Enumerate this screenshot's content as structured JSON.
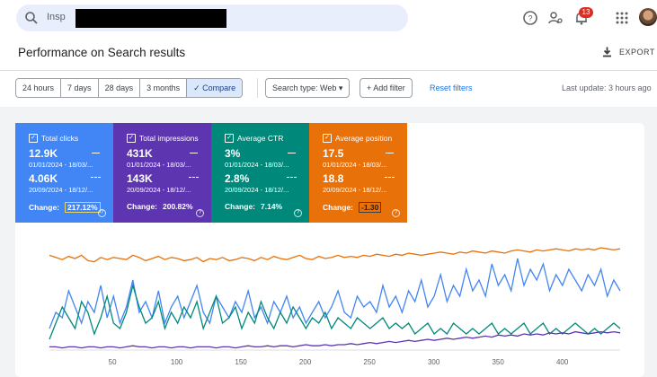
{
  "search": {
    "placeholder": "Insp"
  },
  "page": {
    "title": "Performance on Search results",
    "export_label": "EXPORT"
  },
  "notifications": {
    "count": "13"
  },
  "ranges": [
    "24 hours",
    "7 days",
    "28 days",
    "3 months",
    "Compare"
  ],
  "filters": {
    "search_type": "Search type: Web",
    "add_filter": "Add filter",
    "reset": "Reset filters",
    "last_update": "Last update: 3 hours ago"
  },
  "metrics": [
    {
      "label": "Total clicks",
      "value1": "12.9K",
      "date1": "01/01/2024 - 18/03/...",
      "value2": "4.06K",
      "date2": "20/09/2024 - 18/12/...",
      "change_label": "Change:",
      "change": "217.12%",
      "color": "#4285f4"
    },
    {
      "label": "Total impressions",
      "value1": "431K",
      "date1": "01/01/2024 - 18/03/...",
      "value2": "143K",
      "date2": "20/09/2024 - 18/12/...",
      "change_label": "Change:",
      "change": "200.82%",
      "color": "#5e35b1"
    },
    {
      "label": "Average CTR",
      "value1": "3%",
      "date1": "01/01/2024 - 18/03/...",
      "value2": "2.8%",
      "date2": "20/09/2024 - 18/12/...",
      "change_label": "Change:",
      "change": "7.14%",
      "color": "#00897b"
    },
    {
      "label": "Average position",
      "value1": "17.5",
      "date1": "01/01/2024 - 18/03/...",
      "value2": "18.8",
      "date2": "20/09/2024 - 18/12/...",
      "change_label": "Change:",
      "change": "-1.30",
      "color": "#e8710a"
    }
  ],
  "chart_data": {
    "type": "line",
    "x_ticks": [
      50,
      100,
      150,
      200,
      250,
      300,
      350,
      400
    ],
    "xlim": [
      1,
      445
    ],
    "ylim": [
      0,
      100
    ],
    "series": [
      {
        "color": "#e8710a",
        "values": [
          88,
          86,
          84,
          87,
          85,
          88,
          83,
          82,
          86,
          84,
          86,
          85,
          84,
          88,
          86,
          83,
          85,
          87,
          84,
          86,
          85,
          83,
          84,
          86,
          82,
          85,
          84,
          86,
          83,
          84,
          86,
          85,
          83,
          86,
          84,
          87,
          85,
          84,
          86,
          88,
          85,
          84,
          87,
          85,
          86,
          88,
          86,
          87,
          86,
          88,
          87,
          89,
          88,
          87,
          89,
          88,
          90,
          89,
          88,
          89,
          90,
          91,
          90,
          89,
          91,
          90,
          92,
          91,
          90,
          92,
          91,
          90,
          92,
          93,
          92,
          91,
          93,
          92,
          93,
          94,
          93,
          92,
          94,
          93,
          94,
          93,
          95,
          94,
          93,
          94
        ]
      },
      {
        "color": "#4285f4",
        "values": [
          20,
          35,
          30,
          55,
          40,
          25,
          45,
          35,
          60,
          30,
          50,
          25,
          40,
          65,
          35,
          45,
          30,
          55,
          25,
          40,
          50,
          30,
          45,
          60,
          35,
          25,
          50,
          40,
          30,
          45,
          35,
          55,
          30,
          40,
          25,
          45,
          35,
          50,
          30,
          40,
          25,
          35,
          45,
          30,
          40,
          55,
          35,
          30,
          50,
          40,
          45,
          35,
          60,
          40,
          50,
          35,
          55,
          45,
          65,
          40,
          50,
          70,
          45,
          60,
          50,
          75,
          55,
          65,
          50,
          80,
          60,
          70,
          55,
          85,
          60,
          75,
          65,
          80,
          55,
          70,
          60,
          75,
          65,
          55,
          70,
          60,
          75,
          50,
          65,
          55
        ]
      },
      {
        "color": "#00897b",
        "values": [
          10,
          25,
          40,
          30,
          20,
          45,
          35,
          15,
          30,
          50,
          25,
          20,
          35,
          60,
          40,
          25,
          30,
          45,
          20,
          35,
          25,
          40,
          30,
          45,
          20,
          35,
          50,
          25,
          30,
          40,
          20,
          35,
          25,
          45,
          30,
          20,
          35,
          25,
          40,
          30,
          20,
          30,
          25,
          35,
          20,
          30,
          25,
          20,
          30,
          25,
          20,
          25,
          30,
          20,
          25,
          20,
          25,
          15,
          20,
          25,
          15,
          20,
          15,
          25,
          20,
          15,
          20,
          15,
          20,
          25,
          15,
          20,
          15,
          20,
          25,
          15,
          20,
          25,
          15,
          20,
          15,
          20,
          25,
          20,
          15,
          20,
          15,
          20,
          25,
          20
        ]
      },
      {
        "color": "#5e35b1",
        "values": [
          3,
          3,
          2,
          3,
          3,
          2,
          3,
          3,
          2,
          3,
          3,
          2,
          3,
          4,
          3,
          3,
          2,
          3,
          3,
          2,
          3,
          3,
          2,
          3,
          3,
          3,
          2,
          3,
          3,
          2,
          3,
          4,
          3,
          3,
          4,
          3,
          4,
          4,
          3,
          4,
          5,
          4,
          4,
          5,
          4,
          5,
          5,
          6,
          5,
          6,
          7,
          6,
          7,
          8,
          7,
          8,
          9,
          8,
          9,
          10,
          9,
          10,
          11,
          10,
          11,
          12,
          11,
          12,
          13,
          12,
          14,
          13,
          14,
          13,
          15,
          14,
          15,
          14,
          16,
          15,
          16,
          15,
          17,
          16,
          15,
          16,
          17,
          16,
          17,
          16
        ]
      }
    ]
  }
}
